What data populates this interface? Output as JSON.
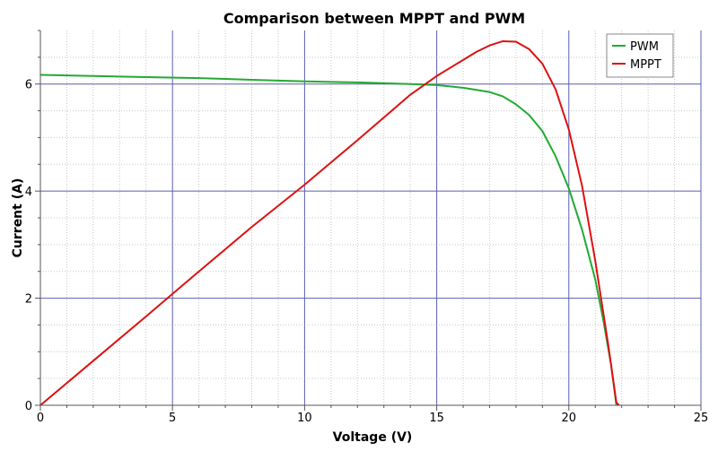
{
  "chart_data": {
    "type": "line",
    "title": "Comparison between MPPT and PWM",
    "xlabel": "Voltage (V)",
    "ylabel": "Current (A)",
    "xlim": [
      0,
      25
    ],
    "ylim": [
      0,
      7
    ],
    "x_ticks": [
      "0",
      "5",
      "10",
      "15",
      "20",
      "25"
    ],
    "y_ticks": [
      "0",
      "2",
      "4",
      "6"
    ],
    "grid": "on",
    "legend_position": "top-right",
    "series": [
      {
        "name": "PWM",
        "color": "#22aa33",
        "points": [
          [
            0,
            6.17
          ],
          [
            2,
            6.15
          ],
          [
            4,
            6.13
          ],
          [
            6,
            6.11
          ],
          [
            8,
            6.08
          ],
          [
            10,
            6.05
          ],
          [
            12,
            6.03
          ],
          [
            14,
            6.0
          ],
          [
            15,
            5.98
          ],
          [
            16,
            5.93
          ],
          [
            17,
            5.85
          ],
          [
            17.5,
            5.77
          ],
          [
            18,
            5.62
          ],
          [
            18.5,
            5.42
          ],
          [
            19,
            5.12
          ],
          [
            19.5,
            4.65
          ],
          [
            20,
            4.05
          ],
          [
            20.5,
            3.28
          ],
          [
            21,
            2.35
          ],
          [
            21.3,
            1.6
          ],
          [
            21.6,
            0.75
          ],
          [
            21.8,
            0.0
          ]
        ]
      },
      {
        "name": "MPPT",
        "color": "#dd1111",
        "points": [
          [
            0,
            0.0
          ],
          [
            2,
            0.83
          ],
          [
            4,
            1.66
          ],
          [
            5,
            2.08
          ],
          [
            6,
            2.5
          ],
          [
            8,
            3.33
          ],
          [
            10,
            4.12
          ],
          [
            12,
            4.95
          ],
          [
            14,
            5.8
          ],
          [
            15,
            6.15
          ],
          [
            16,
            6.45
          ],
          [
            16.5,
            6.6
          ],
          [
            17,
            6.72
          ],
          [
            17.5,
            6.8
          ],
          [
            18,
            6.79
          ],
          [
            18.5,
            6.65
          ],
          [
            19,
            6.38
          ],
          [
            19.5,
            5.9
          ],
          [
            20,
            5.15
          ],
          [
            20.5,
            4.1
          ],
          [
            21,
            2.7
          ],
          [
            21.5,
            1.1
          ],
          [
            21.8,
            0.05
          ],
          [
            21.9,
            0.0
          ]
        ]
      }
    ]
  }
}
